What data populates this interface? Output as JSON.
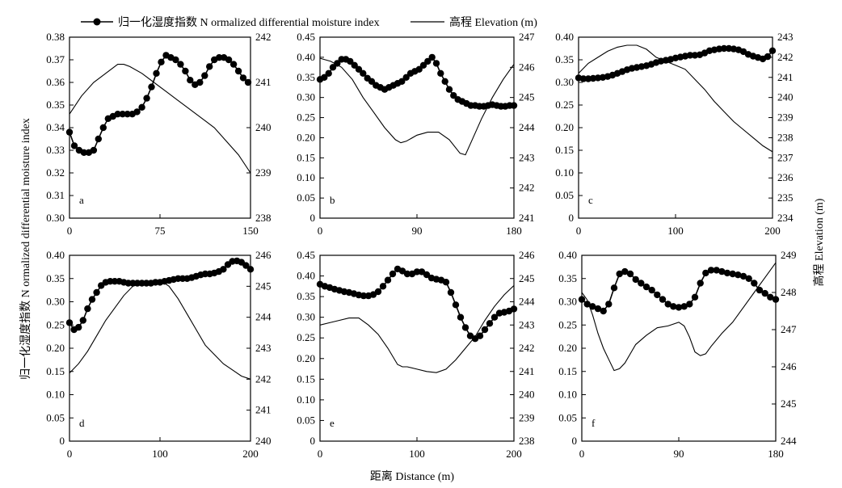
{
  "legend": {
    "ndmi_label": "归一化湿度指数 N ormalized differential moisture index",
    "elev_label": "高程 Elevation (m)"
  },
  "ylabel_left": "归一化湿度指数 N ormalized differential moisture index",
  "ylabel_right": "高程 Elevation (m)",
  "xlabel": "距离 Distance (m)",
  "chart_data": [
    {
      "type": "line",
      "panel": "a",
      "xlim": [
        0,
        150
      ],
      "xticks": [
        0,
        75,
        150
      ],
      "ylim_left": [
        0.3,
        0.38
      ],
      "yticks_left": [
        0.3,
        0.31,
        0.32,
        0.33,
        0.34,
        0.35,
        0.36,
        0.37,
        0.38
      ],
      "ylim_right": [
        238,
        242
      ],
      "yticks_right": [
        238,
        239,
        240,
        241,
        242
      ],
      "ndmi": {
        "x": [
          0,
          4,
          8,
          12,
          16,
          20,
          24,
          28,
          32,
          36,
          40,
          44,
          48,
          52,
          56,
          60,
          64,
          68,
          72,
          76,
          80,
          84,
          88,
          92,
          96,
          100,
          104,
          108,
          112,
          116,
          120,
          124,
          128,
          132,
          136,
          140,
          144,
          148
        ],
        "y": [
          0.338,
          0.332,
          0.33,
          0.329,
          0.329,
          0.33,
          0.335,
          0.34,
          0.344,
          0.345,
          0.346,
          0.346,
          0.346,
          0.346,
          0.347,
          0.349,
          0.353,
          0.358,
          0.364,
          0.369,
          0.372,
          0.371,
          0.37,
          0.368,
          0.365,
          0.361,
          0.359,
          0.36,
          0.363,
          0.367,
          0.37,
          0.371,
          0.371,
          0.37,
          0.368,
          0.365,
          0.362,
          0.36
        ]
      },
      "elevation": {
        "x": [
          0,
          10,
          20,
          30,
          40,
          45,
          50,
          60,
          70,
          80,
          90,
          100,
          110,
          120,
          130,
          140,
          150
        ],
        "y": [
          240.3,
          240.7,
          241.0,
          241.2,
          241.4,
          241.4,
          241.35,
          241.2,
          241.0,
          240.8,
          240.6,
          240.4,
          240.2,
          240.0,
          239.7,
          239.4,
          239.0
        ]
      }
    },
    {
      "type": "line",
      "panel": "b",
      "xlim": [
        0,
        180
      ],
      "xticks": [
        0,
        90,
        180
      ],
      "ylim_left": [
        0,
        0.45
      ],
      "yticks_left": [
        0,
        0.05,
        0.1,
        0.15,
        0.2,
        0.25,
        0.3,
        0.35,
        0.4,
        0.45
      ],
      "ylim_right": [
        241,
        247
      ],
      "yticks_right": [
        241,
        242,
        243,
        244,
        245,
        246,
        247
      ],
      "ndmi": {
        "x": [
          0,
          4,
          8,
          12,
          16,
          20,
          24,
          28,
          32,
          36,
          40,
          44,
          48,
          52,
          56,
          60,
          64,
          68,
          72,
          76,
          80,
          84,
          88,
          92,
          96,
          100,
          104,
          108,
          112,
          116,
          120,
          124,
          128,
          132,
          136,
          140,
          144,
          148,
          152,
          156,
          160,
          164,
          168,
          172,
          176,
          180
        ],
        "y": [
          0.345,
          0.35,
          0.36,
          0.375,
          0.385,
          0.395,
          0.395,
          0.39,
          0.38,
          0.37,
          0.36,
          0.348,
          0.34,
          0.33,
          0.325,
          0.32,
          0.325,
          0.33,
          0.335,
          0.34,
          0.35,
          0.36,
          0.365,
          0.37,
          0.38,
          0.39,
          0.4,
          0.385,
          0.36,
          0.34,
          0.32,
          0.305,
          0.295,
          0.29,
          0.285,
          0.28,
          0.28,
          0.278,
          0.278,
          0.28,
          0.282,
          0.28,
          0.278,
          0.278,
          0.28,
          0.28
        ]
      },
      "elevation": {
        "x": [
          0,
          10,
          20,
          30,
          40,
          50,
          60,
          70,
          75,
          80,
          90,
          100,
          110,
          120,
          130,
          135,
          140,
          150,
          160,
          170,
          180
        ],
        "y": [
          246.3,
          246.2,
          246.0,
          245.6,
          245.0,
          244.5,
          244.0,
          243.6,
          243.5,
          243.55,
          243.75,
          243.85,
          243.85,
          243.6,
          243.15,
          243.1,
          243.5,
          244.3,
          245.0,
          245.6,
          246.1
        ]
      }
    },
    {
      "type": "line",
      "panel": "c",
      "xlim": [
        0,
        200
      ],
      "xticks": [
        0,
        100,
        200
      ],
      "ylim_left": [
        0,
        0.4
      ],
      "yticks_left": [
        0,
        0.05,
        0.1,
        0.15,
        0.2,
        0.25,
        0.3,
        0.35,
        0.4
      ],
      "ylim_right": [
        234,
        243
      ],
      "yticks_right": [
        234,
        235,
        236,
        237,
        238,
        239,
        240,
        241,
        242,
        243
      ],
      "ndmi": {
        "x": [
          0,
          5,
          10,
          15,
          20,
          25,
          30,
          35,
          40,
          45,
          50,
          55,
          60,
          65,
          70,
          75,
          80,
          85,
          90,
          95,
          100,
          105,
          110,
          115,
          120,
          125,
          130,
          135,
          140,
          145,
          150,
          155,
          160,
          165,
          170,
          175,
          180,
          185,
          190,
          195,
          200
        ],
        "y": [
          0.31,
          0.308,
          0.308,
          0.309,
          0.31,
          0.311,
          0.313,
          0.316,
          0.32,
          0.324,
          0.328,
          0.331,
          0.333,
          0.335,
          0.337,
          0.34,
          0.344,
          0.347,
          0.349,
          0.351,
          0.354,
          0.356,
          0.358,
          0.36,
          0.36,
          0.361,
          0.365,
          0.37,
          0.372,
          0.374,
          0.375,
          0.375,
          0.374,
          0.372,
          0.368,
          0.362,
          0.358,
          0.355,
          0.352,
          0.357,
          0.37
        ]
      },
      "elevation": {
        "x": [
          0,
          10,
          20,
          30,
          40,
          50,
          60,
          70,
          80,
          90,
          100,
          110,
          120,
          130,
          140,
          150,
          160,
          170,
          180,
          190,
          200
        ],
        "y": [
          241.2,
          241.7,
          242.0,
          242.3,
          242.5,
          242.6,
          242.6,
          242.4,
          242.0,
          241.8,
          241.6,
          241.4,
          240.9,
          240.4,
          239.8,
          239.3,
          238.8,
          238.4,
          238.0,
          237.6,
          237.3
        ]
      }
    },
    {
      "type": "line",
      "panel": "d",
      "xlim": [
        0,
        200
      ],
      "xticks": [
        0,
        100,
        200
      ],
      "ylim_left": [
        0,
        0.4
      ],
      "yticks_left": [
        0,
        0.05,
        0.1,
        0.15,
        0.2,
        0.25,
        0.3,
        0.35,
        0.4
      ],
      "ylim_right": [
        240,
        246
      ],
      "yticks_right": [
        240,
        241,
        242,
        243,
        244,
        245,
        246
      ],
      "ndmi": {
        "x": [
          0,
          5,
          10,
          15,
          20,
          25,
          30,
          35,
          40,
          45,
          50,
          55,
          60,
          65,
          70,
          75,
          80,
          85,
          90,
          95,
          100,
          105,
          110,
          115,
          120,
          125,
          130,
          135,
          140,
          145,
          150,
          155,
          160,
          165,
          170,
          175,
          180,
          185,
          190,
          195,
          200
        ],
        "y": [
          0.255,
          0.24,
          0.245,
          0.26,
          0.285,
          0.305,
          0.32,
          0.335,
          0.342,
          0.344,
          0.344,
          0.344,
          0.342,
          0.34,
          0.34,
          0.34,
          0.34,
          0.34,
          0.34,
          0.342,
          0.342,
          0.344,
          0.346,
          0.348,
          0.35,
          0.35,
          0.35,
          0.352,
          0.355,
          0.358,
          0.36,
          0.36,
          0.362,
          0.365,
          0.37,
          0.38,
          0.387,
          0.388,
          0.385,
          0.378,
          0.37
        ]
      },
      "elevation": {
        "x": [
          0,
          10,
          20,
          30,
          40,
          50,
          60,
          70,
          80,
          90,
          100,
          110,
          120,
          130,
          140,
          150,
          160,
          170,
          180,
          190,
          200
        ],
        "y": [
          242.2,
          242.5,
          242.9,
          243.4,
          243.9,
          244.3,
          244.7,
          245.0,
          245.1,
          245.1,
          245.2,
          245.0,
          244.6,
          244.1,
          243.6,
          243.1,
          242.8,
          242.5,
          242.3,
          242.1,
          242.0
        ]
      }
    },
    {
      "type": "line",
      "panel": "e",
      "xlim": [
        0,
        200
      ],
      "xticks": [
        0,
        100,
        200
      ],
      "ylim_left": [
        0,
        0.45
      ],
      "yticks_left": [
        0,
        0.05,
        0.1,
        0.15,
        0.2,
        0.25,
        0.3,
        0.35,
        0.4,
        0.45
      ],
      "ylim_right": [
        238,
        246
      ],
      "yticks_right": [
        238,
        239,
        240,
        241,
        242,
        243,
        244,
        245,
        246
      ],
      "ndmi": {
        "x": [
          0,
          5,
          10,
          15,
          20,
          25,
          30,
          35,
          40,
          45,
          50,
          55,
          60,
          65,
          70,
          75,
          80,
          85,
          90,
          95,
          100,
          105,
          110,
          115,
          120,
          125,
          130,
          135,
          140,
          145,
          150,
          155,
          160,
          165,
          170,
          175,
          180,
          185,
          190,
          195,
          200
        ],
        "y": [
          0.38,
          0.375,
          0.372,
          0.368,
          0.365,
          0.362,
          0.36,
          0.357,
          0.354,
          0.352,
          0.352,
          0.355,
          0.362,
          0.375,
          0.39,
          0.405,
          0.417,
          0.412,
          0.405,
          0.405,
          0.41,
          0.41,
          0.403,
          0.395,
          0.392,
          0.39,
          0.385,
          0.36,
          0.33,
          0.3,
          0.275,
          0.255,
          0.248,
          0.255,
          0.27,
          0.285,
          0.3,
          0.31,
          0.312,
          0.315,
          0.32
        ]
      },
      "elevation": {
        "x": [
          0,
          10,
          20,
          30,
          40,
          50,
          60,
          70,
          80,
          85,
          90,
          100,
          110,
          120,
          130,
          140,
          150,
          160,
          170,
          180,
          190,
          200
        ],
        "y": [
          243.0,
          243.1,
          243.2,
          243.3,
          243.3,
          243.0,
          242.6,
          242.0,
          241.3,
          241.2,
          241.2,
          241.1,
          241.0,
          240.95,
          241.1,
          241.5,
          242.0,
          242.5,
          243.2,
          243.8,
          244.3,
          244.7
        ]
      }
    },
    {
      "type": "line",
      "panel": "f",
      "xlim": [
        0,
        180
      ],
      "xticks": [
        0,
        90,
        180
      ],
      "ylim_left": [
        0,
        0.4
      ],
      "yticks_left": [
        0,
        0.05,
        0.1,
        0.15,
        0.2,
        0.25,
        0.3,
        0.35,
        0.4
      ],
      "ylim_right": [
        244,
        249
      ],
      "yticks_right": [
        244,
        245,
        246,
        247,
        248,
        249
      ],
      "ndmi": {
        "x": [
          0,
          5,
          10,
          15,
          20,
          25,
          30,
          35,
          40,
          45,
          50,
          55,
          60,
          65,
          70,
          75,
          80,
          85,
          90,
          95,
          100,
          105,
          110,
          115,
          120,
          125,
          130,
          135,
          140,
          145,
          150,
          155,
          160,
          165,
          170,
          175,
          180
        ],
        "y": [
          0.305,
          0.295,
          0.29,
          0.285,
          0.28,
          0.295,
          0.33,
          0.36,
          0.365,
          0.36,
          0.348,
          0.34,
          0.332,
          0.325,
          0.315,
          0.305,
          0.295,
          0.29,
          0.288,
          0.29,
          0.295,
          0.31,
          0.34,
          0.362,
          0.368,
          0.368,
          0.365,
          0.362,
          0.36,
          0.358,
          0.355,
          0.35,
          0.34,
          0.325,
          0.318,
          0.31,
          0.305
        ]
      },
      "elevation": {
        "x": [
          0,
          5,
          10,
          15,
          20,
          25,
          30,
          35,
          40,
          45,
          50,
          60,
          70,
          80,
          90,
          95,
          100,
          105,
          110,
          115,
          120,
          130,
          140,
          150,
          160,
          170,
          180
        ],
        "y": [
          248.0,
          247.8,
          247.4,
          246.9,
          246.5,
          246.2,
          245.9,
          245.95,
          246.1,
          246.35,
          246.6,
          246.85,
          247.05,
          247.1,
          247.2,
          247.1,
          246.8,
          246.4,
          246.3,
          246.35,
          246.55,
          246.9,
          247.2,
          247.6,
          248.0,
          248.4,
          248.8
        ]
      }
    }
  ]
}
